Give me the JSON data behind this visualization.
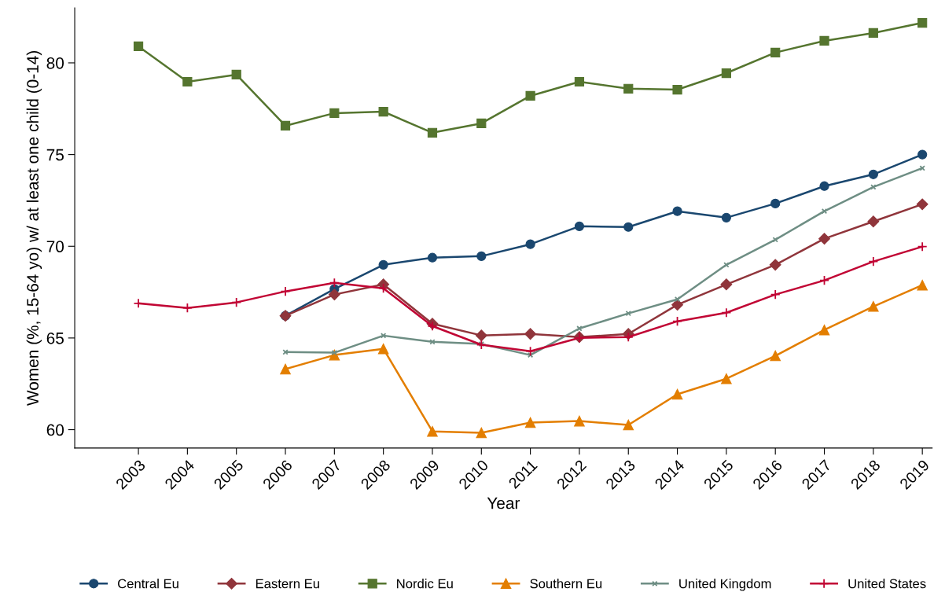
{
  "chart_data": {
    "type": "line",
    "xlabel": "Year",
    "ylabel": "Women (%, 15-64 yo) w/ at least one child (0-14)",
    "categories": [
      "2003",
      "2004",
      "2005",
      "2006",
      "2007",
      "2008",
      "2009",
      "2010",
      "2011",
      "2012",
      "2013",
      "2014",
      "2015",
      "2016",
      "2017",
      "2018",
      "2019"
    ],
    "ylim": [
      59.0,
      83.0
    ],
    "yticks": [
      60,
      65,
      70,
      75,
      80
    ],
    "grid": false,
    "legend": "bottom",
    "series": [
      {
        "name": "Central Eu",
        "color": "#1a476f",
        "marker": "circle",
        "values": [
          null,
          null,
          null,
          66.21,
          67.67,
          68.99,
          69.38,
          69.46,
          70.11,
          71.09,
          71.05,
          71.91,
          71.56,
          72.33,
          73.28,
          73.92,
          75.0
        ]
      },
      {
        "name": "Eastern Eu",
        "color": "#90353b",
        "marker": "diamond",
        "values": [
          null,
          null,
          null,
          66.21,
          67.37,
          67.92,
          65.78,
          65.14,
          65.22,
          65.05,
          65.22,
          66.81,
          67.92,
          68.99,
          70.41,
          71.35,
          72.29
        ]
      },
      {
        "name": "Nordic Eu",
        "color": "#55752f",
        "marker": "square",
        "values": [
          80.9,
          78.97,
          79.36,
          76.57,
          77.26,
          77.34,
          76.19,
          76.7,
          78.2,
          78.97,
          78.59,
          78.54,
          79.44,
          80.56,
          81.2,
          81.63,
          82.18
        ]
      },
      {
        "name": "Southern Eu",
        "color": "#e37e00",
        "marker": "triangle",
        "values": [
          null,
          null,
          null,
          63.3,
          64.07,
          64.41,
          59.91,
          59.83,
          60.39,
          60.47,
          60.26,
          61.93,
          62.78,
          64.03,
          65.44,
          66.72,
          67.88
        ]
      },
      {
        "name": "United Kingdom",
        "color": "#6e8e84",
        "marker": "cross",
        "values": [
          null,
          null,
          null,
          64.23,
          64.2,
          65.13,
          64.79,
          64.67,
          64.07,
          65.52,
          66.34,
          67.11,
          68.99,
          70.36,
          71.91,
          73.23,
          74.26
        ]
      },
      {
        "name": "United States",
        "color": "#c10534",
        "marker": "plus",
        "values": [
          66.89,
          66.64,
          66.94,
          67.54,
          68.01,
          67.71,
          65.65,
          64.63,
          64.28,
          65.01,
          65.05,
          65.91,
          66.38,
          67.37,
          68.14,
          69.17,
          69.98
        ]
      }
    ]
  }
}
